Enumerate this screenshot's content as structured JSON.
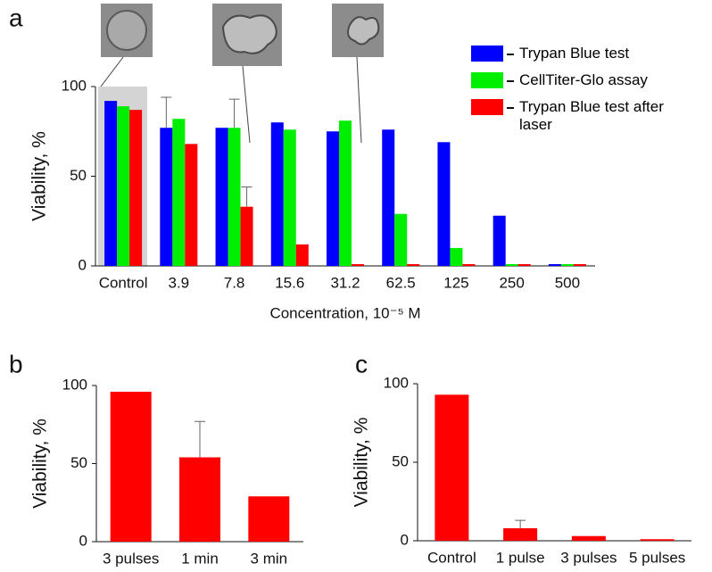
{
  "chart_data": [
    {
      "type": "bar",
      "panel": "a",
      "y_label": "Viability, %",
      "x_label": "Concentration, 10⁻⁵ M",
      "categories": [
        "Control",
        "3.9",
        "7.8",
        "15.6",
        "31.2",
        "62.5",
        "125",
        "250",
        "500"
      ],
      "series": [
        {
          "name": "Trypan Blue test",
          "color": "#0000ff",
          "values": [
            92,
            77,
            77,
            80,
            75,
            76,
            69,
            28,
            1
          ],
          "errors": [
            null,
            17,
            null,
            null,
            null,
            null,
            null,
            null,
            null
          ]
        },
        {
          "name": "CellTiter-Glo assay",
          "color": "#00ee00",
          "values": [
            89,
            82,
            77,
            76,
            81,
            29,
            10,
            1,
            1
          ],
          "errors": [
            null,
            null,
            16,
            null,
            null,
            null,
            null,
            null,
            null
          ]
        },
        {
          "name": "Trypan Blue test after laser",
          "color": "#ff0000",
          "values": [
            87,
            68,
            33,
            12,
            1,
            1,
            1,
            1,
            1
          ],
          "errors": [
            null,
            null,
            11,
            null,
            null,
            null,
            null,
            null,
            null
          ]
        }
      ],
      "ylim": [
        0,
        100
      ],
      "yticks": [
        0,
        50,
        100
      ]
    },
    {
      "type": "bar",
      "panel": "b",
      "y_label": "Viability, %",
      "categories": [
        "3 pulses",
        "1 min",
        "3 min"
      ],
      "values": [
        96,
        54,
        29
      ],
      "errors": [
        null,
        23,
        null
      ],
      "color": "#ff0000",
      "ylim": [
        0,
        100
      ],
      "yticks": [
        0,
        50,
        100
      ]
    },
    {
      "type": "bar",
      "panel": "c",
      "y_label": "Viability, %",
      "categories": [
        "Control",
        "1 pulse",
        "3 pulses",
        "5 pulses"
      ],
      "values": [
        93,
        8,
        3,
        1
      ],
      "errors": [
        null,
        5,
        null,
        null
      ],
      "color": "#ff0000",
      "ylim": [
        0,
        100
      ],
      "yticks": [
        0,
        50,
        100
      ]
    }
  ]
}
